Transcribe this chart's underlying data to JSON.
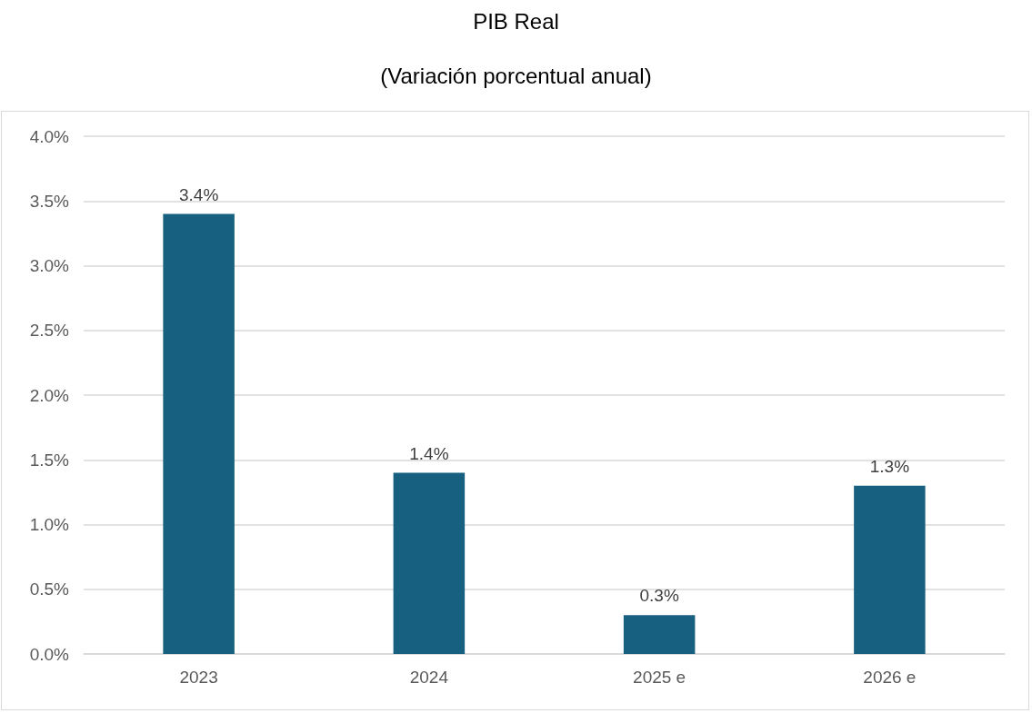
{
  "chart_data": {
    "type": "bar",
    "title": "PIB Real",
    "subtitle": "(Variación porcentual anual)",
    "categories": [
      "2023",
      "2024",
      "2025 e",
      "2026 e"
    ],
    "values": [
      3.4,
      1.4,
      0.3,
      1.3
    ],
    "value_labels": [
      "3.4%",
      "1.4%",
      "0.3%",
      "1.3%"
    ],
    "color": "#17607f",
    "ylim": [
      0,
      4
    ],
    "yticks": [
      {
        "value": 0,
        "label": "0.0%"
      },
      {
        "value": 0.5,
        "label": "0.5%"
      },
      {
        "value": 1,
        "label": "1.0%"
      },
      {
        "value": 1.5,
        "label": "1.5%"
      },
      {
        "value": 2,
        "label": "2.0%"
      },
      {
        "value": 2.5,
        "label": "2.5%"
      },
      {
        "value": 3,
        "label": "3.0%"
      },
      {
        "value": 3.5,
        "label": "3.5%"
      },
      {
        "value": 4,
        "label": "4.0%"
      }
    ],
    "grid": "y"
  }
}
